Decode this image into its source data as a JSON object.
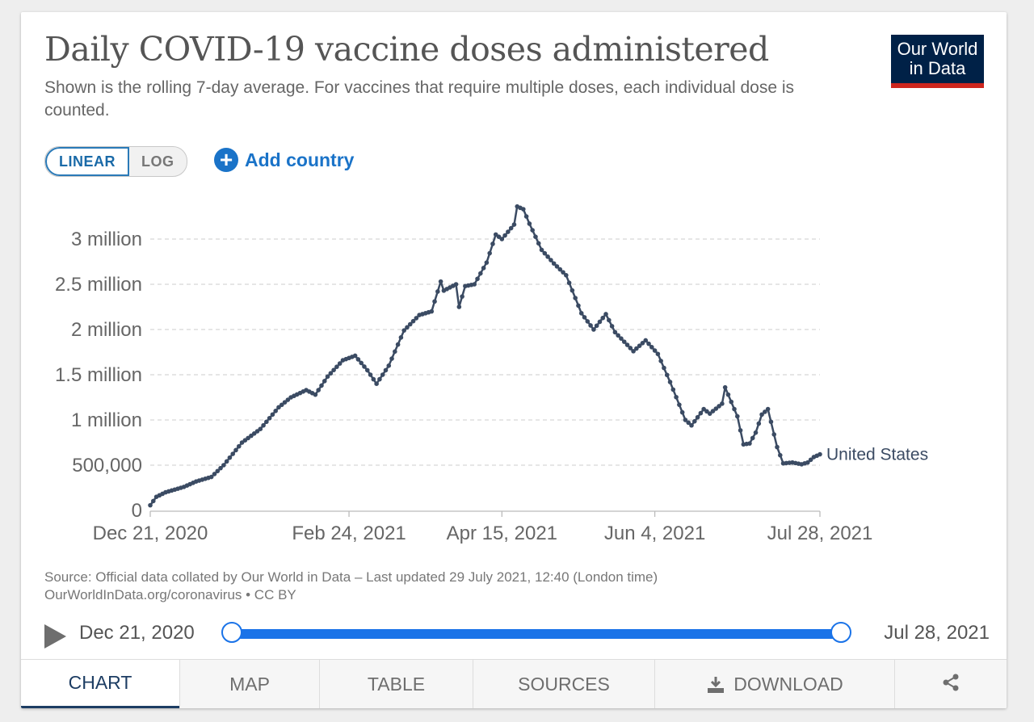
{
  "header": {
    "title": "Daily COVID-19 vaccine doses administered",
    "subtitle": "Shown is the rolling 7-day average. For vaccines that require multiple doses, each individual dose is counted.",
    "logo_line1": "Our World",
    "logo_line2": "in Data"
  },
  "controls": {
    "linear_label": "LINEAR",
    "log_label": "LOG",
    "add_country_label": "Add country",
    "selected_scale": "linear"
  },
  "colors": {
    "line": "#3b4b63",
    "logo_bg": "#002147",
    "logo_bar": "#ce261e",
    "accent": "#1a73e8",
    "active_tab": "#1d3d63"
  },
  "chart_data": {
    "type": "line",
    "title": "Daily COVID-19 vaccine doses administered",
    "ylim": [
      0,
      3000000
    ],
    "yticks": [
      {
        "value": 0,
        "label": "0"
      },
      {
        "value": 500000,
        "label": "500,000"
      },
      {
        "value": 1000000,
        "label": "1 million"
      },
      {
        "value": 1500000,
        "label": "1.5 million"
      },
      {
        "value": 2000000,
        "label": "2 million"
      },
      {
        "value": 2500000,
        "label": "2.5 million"
      },
      {
        "value": 3000000,
        "label": "3 million"
      }
    ],
    "xlim": [
      "2020-12-21",
      "2021-07-28"
    ],
    "xticks": [
      "Dec 21, 2020",
      "Feb 24, 2021",
      "Apr 15, 2021",
      "Jun 4, 2021",
      "Jul 28, 2021"
    ],
    "grid": true,
    "series": [
      {
        "name": "United States",
        "points": [
          [
            "2020-12-21",
            57000
          ],
          [
            "2020-12-23",
            150000
          ],
          [
            "2020-12-26",
            200000
          ],
          [
            "2020-12-29",
            230000
          ],
          [
            "2021-01-01",
            260000
          ],
          [
            "2021-01-05",
            320000
          ],
          [
            "2021-01-10",
            370000
          ],
          [
            "2021-01-14",
            500000
          ],
          [
            "2021-01-20",
            750000
          ],
          [
            "2021-01-26",
            900000
          ],
          [
            "2021-02-01",
            1140000
          ],
          [
            "2021-02-05",
            1250000
          ],
          [
            "2021-02-10",
            1330000
          ],
          [
            "2021-02-13",
            1280000
          ],
          [
            "2021-02-17",
            1480000
          ],
          [
            "2021-02-22",
            1660000
          ],
          [
            "2021-02-26",
            1710000
          ],
          [
            "2021-03-02",
            1550000
          ],
          [
            "2021-03-05",
            1400000
          ],
          [
            "2021-03-09",
            1600000
          ],
          [
            "2021-03-14",
            1990000
          ],
          [
            "2021-03-19",
            2160000
          ],
          [
            "2021-03-23",
            2200000
          ],
          [
            "2021-03-26",
            2530000
          ],
          [
            "2021-03-27",
            2430000
          ],
          [
            "2021-03-31",
            2500000
          ],
          [
            "2021-04-01",
            2250000
          ],
          [
            "2021-04-03",
            2480000
          ],
          [
            "2021-04-06",
            2500000
          ],
          [
            "2021-04-10",
            2740000
          ],
          [
            "2021-04-13",
            3050000
          ],
          [
            "2021-04-15",
            3000000
          ],
          [
            "2021-04-19",
            3160000
          ],
          [
            "2021-04-20",
            3360000
          ],
          [
            "2021-04-22",
            3330000
          ],
          [
            "2021-04-24",
            3170000
          ],
          [
            "2021-04-28",
            2880000
          ],
          [
            "2021-05-02",
            2730000
          ],
          [
            "2021-05-06",
            2600000
          ],
          [
            "2021-05-11",
            2180000
          ],
          [
            "2021-05-15",
            2000000
          ],
          [
            "2021-05-19",
            2170000
          ],
          [
            "2021-05-22",
            1970000
          ],
          [
            "2021-05-28",
            1760000
          ],
          [
            "2021-06-01",
            1880000
          ],
          [
            "2021-06-05",
            1730000
          ],
          [
            "2021-06-09",
            1420000
          ],
          [
            "2021-06-14",
            1000000
          ],
          [
            "2021-06-16",
            940000
          ],
          [
            "2021-06-20",
            1120000
          ],
          [
            "2021-06-22",
            1070000
          ],
          [
            "2021-06-26",
            1180000
          ],
          [
            "2021-06-27",
            1360000
          ],
          [
            "2021-07-01",
            1040000
          ],
          [
            "2021-07-03",
            730000
          ],
          [
            "2021-07-05",
            740000
          ],
          [
            "2021-07-07",
            860000
          ],
          [
            "2021-07-09",
            1060000
          ],
          [
            "2021-07-11",
            1120000
          ],
          [
            "2021-07-14",
            700000
          ],
          [
            "2021-07-16",
            520000
          ],
          [
            "2021-07-19",
            530000
          ],
          [
            "2021-07-22",
            510000
          ],
          [
            "2021-07-24",
            530000
          ],
          [
            "2021-07-26",
            590000
          ],
          [
            "2021-07-28",
            620000
          ]
        ]
      }
    ]
  },
  "source": {
    "line1": "Source: Official data collated by Our World in Data – Last updated 29 July 2021, 12:40 (London time)",
    "line2": "OurWorldInData.org/coronavirus • CC BY"
  },
  "timeline": {
    "start_label": "Dec 21, 2020",
    "end_label": "Jul 28, 2021"
  },
  "tabs": [
    {
      "label": "CHART",
      "active": true
    },
    {
      "label": "MAP",
      "active": false
    },
    {
      "label": "TABLE",
      "active": false
    },
    {
      "label": "SOURCES",
      "active": false
    },
    {
      "label": "DOWNLOAD",
      "active": false
    },
    {
      "label": "",
      "icon": "share-icon",
      "active": false
    }
  ]
}
